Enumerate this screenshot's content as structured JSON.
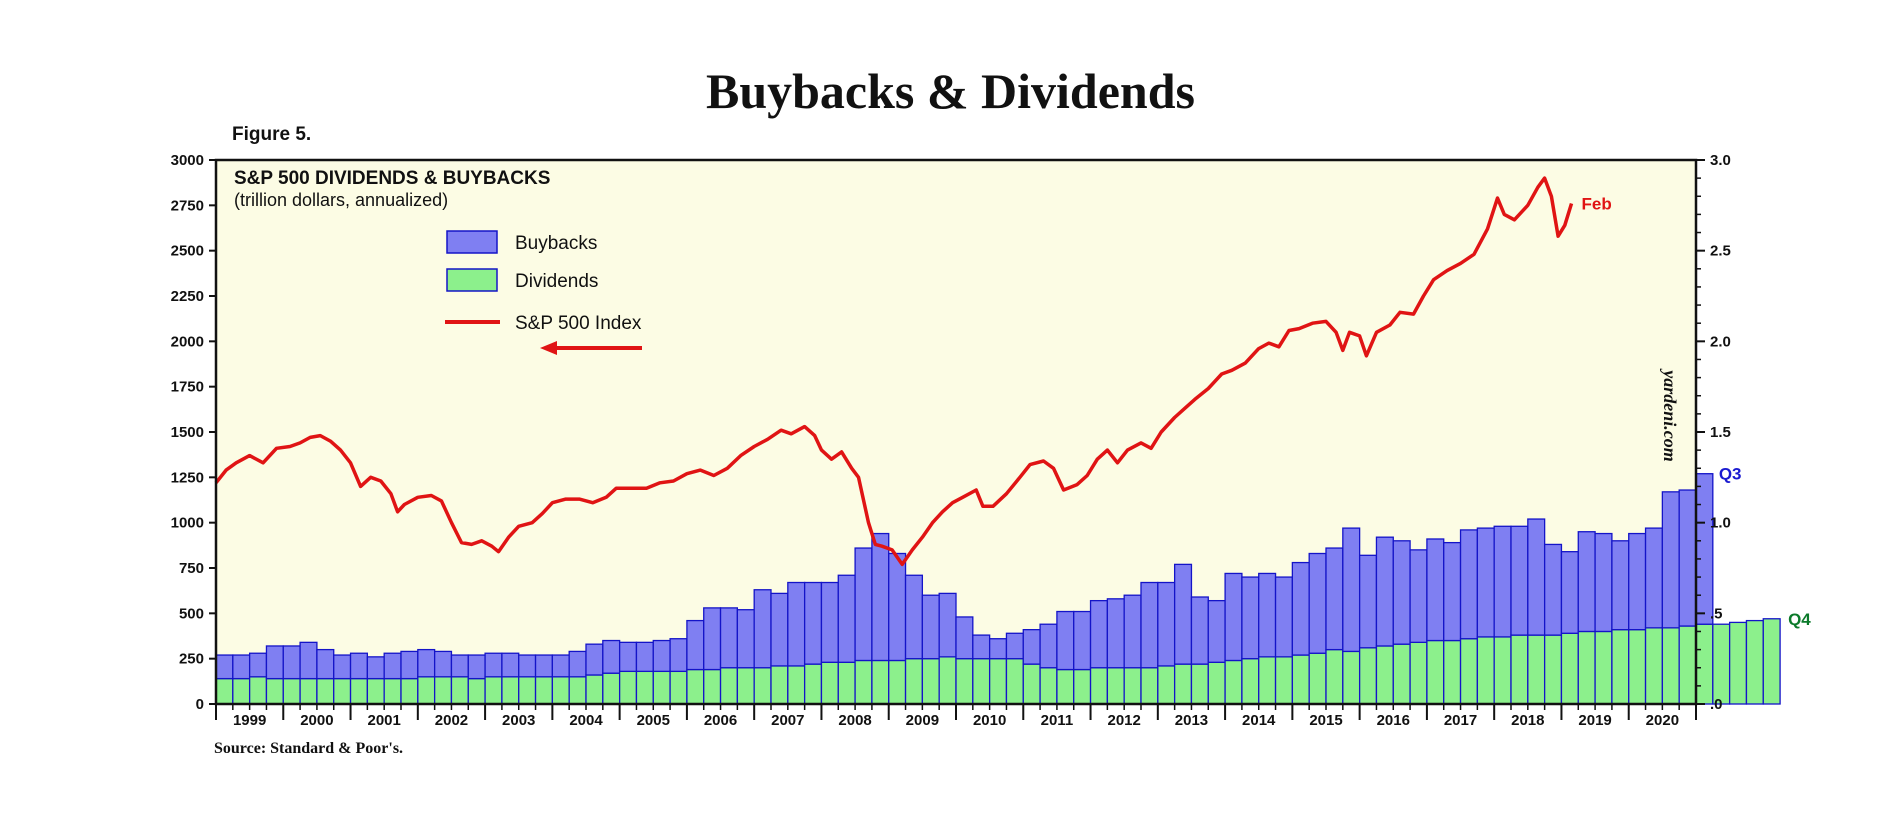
{
  "header": {
    "title": "Buybacks & Dividends",
    "figure_label": "Figure 5.",
    "source": "Source: Standard & Poor's.",
    "watermark": "yardeni.com"
  },
  "colors": {
    "background": "#fcfce4",
    "buybacks": "#7f7ff2",
    "dividends": "#8cf08c",
    "bar_edge": "#1414c8",
    "index_line": "#e01414",
    "q3_label": "#1a1ad0",
    "q4_label": "#0b7a2a",
    "feb_label": "#e01414"
  },
  "chart_data": {
    "type": "bar",
    "title": "S&P 500 DIVIDENDS & BUYBACKS",
    "subtitle": "(trillion dollars, annualized)",
    "x_labels": [
      "1999",
      "2000",
      "2001",
      "2002",
      "2003",
      "2004",
      "2005",
      "2006",
      "2007",
      "2008",
      "2009",
      "2010",
      "2011",
      "2012",
      "2013",
      "2014",
      "2015",
      "2016",
      "2017",
      "2018",
      "2019",
      "2020"
    ],
    "xlim": [
      1999,
      2021
    ],
    "y_left": {
      "range": [
        0,
        3000
      ],
      "ticks": [
        "0",
        "250",
        "500",
        "750",
        "1000",
        "1250",
        "1500",
        "1750",
        "2000",
        "2250",
        "2500",
        "2750",
        "3000"
      ]
    },
    "y_right": {
      "range": [
        0,
        3.0
      ],
      "ticks": [
        ".0",
        ".5",
        "1.0",
        "1.5",
        "2.0",
        "2.5",
        "3.0"
      ]
    },
    "legend": {
      "placement": "top-left",
      "items": [
        {
          "label": "Buybacks",
          "kind": "bar",
          "color": "#7f7ff2"
        },
        {
          "label": "Dividends",
          "kind": "bar",
          "color": "#8cf08c"
        },
        {
          "label": "S&P 500 Index",
          "kind": "line",
          "color": "#e01414"
        }
      ],
      "axis_arrow_note": "left-arrow"
    },
    "annotations": {
      "buybacks_end": "Q3",
      "dividends_end": "Q4",
      "index_end": "Feb"
    },
    "series": [
      {
        "name": "Dividends",
        "axis": "right",
        "start_quarter": "1999Q1",
        "values": [
          0.14,
          0.14,
          0.15,
          0.14,
          0.14,
          0.14,
          0.14,
          0.14,
          0.14,
          0.14,
          0.14,
          0.14,
          0.15,
          0.15,
          0.15,
          0.14,
          0.15,
          0.15,
          0.15,
          0.15,
          0.15,
          0.15,
          0.16,
          0.17,
          0.18,
          0.18,
          0.18,
          0.18,
          0.19,
          0.19,
          0.2,
          0.2,
          0.2,
          0.21,
          0.21,
          0.22,
          0.23,
          0.23,
          0.24,
          0.24,
          0.24,
          0.25,
          0.25,
          0.26,
          0.25,
          0.25,
          0.25,
          0.25,
          0.22,
          0.2,
          0.19,
          0.19,
          0.2,
          0.2,
          0.2,
          0.2,
          0.21,
          0.22,
          0.22,
          0.23,
          0.24,
          0.25,
          0.26,
          0.26,
          0.27,
          0.28,
          0.3,
          0.29,
          0.31,
          0.32,
          0.33,
          0.34,
          0.35,
          0.35,
          0.36,
          0.37,
          0.37,
          0.38,
          0.38,
          0.38,
          0.39,
          0.4,
          0.4,
          0.41,
          0.41,
          0.42,
          0.42,
          0.43,
          0.44,
          0.44,
          0.45,
          0.46,
          0.47
        ]
      },
      {
        "name": "Buybacks",
        "axis": "right",
        "start_quarter": "1999Q1",
        "values": [
          0.13,
          0.13,
          0.13,
          0.18,
          0.18,
          0.2,
          0.16,
          0.13,
          0.14,
          0.12,
          0.14,
          0.15,
          0.15,
          0.14,
          0.12,
          0.13,
          0.13,
          0.13,
          0.12,
          0.12,
          0.12,
          0.14,
          0.17,
          0.18,
          0.16,
          0.16,
          0.17,
          0.18,
          0.27,
          0.34,
          0.33,
          0.32,
          0.43,
          0.4,
          0.46,
          0.45,
          0.44,
          0.48,
          0.62,
          0.7,
          0.59,
          0.46,
          0.35,
          0.35,
          0.23,
          0.13,
          0.11,
          0.14,
          0.19,
          0.24,
          0.32,
          0.32,
          0.37,
          0.38,
          0.4,
          0.47,
          0.46,
          0.55,
          0.37,
          0.34,
          0.48,
          0.45,
          0.46,
          0.44,
          0.51,
          0.55,
          0.56,
          0.68,
          0.51,
          0.6,
          0.57,
          0.51,
          0.56,
          0.54,
          0.6,
          0.6,
          0.61,
          0.6,
          0.64,
          0.5,
          0.45,
          0.55,
          0.54,
          0.49,
          0.53,
          0.55,
          0.75,
          0.75,
          0.83
        ]
      },
      {
        "name": "S&P 500 Index",
        "axis": "left",
        "type": "line",
        "points": [
          [
            1999.0,
            1220
          ],
          [
            1999.15,
            1290
          ],
          [
            1999.3,
            1330
          ],
          [
            1999.5,
            1370
          ],
          [
            1999.7,
            1330
          ],
          [
            1999.9,
            1410
          ],
          [
            2000.1,
            1420
          ],
          [
            2000.25,
            1440
          ],
          [
            2000.4,
            1470
          ],
          [
            2000.55,
            1480
          ],
          [
            2000.7,
            1450
          ],
          [
            2000.85,
            1400
          ],
          [
            2001.0,
            1330
          ],
          [
            2001.15,
            1200
          ],
          [
            2001.3,
            1250
          ],
          [
            2001.45,
            1230
          ],
          [
            2001.6,
            1160
          ],
          [
            2001.7,
            1060
          ],
          [
            2001.8,
            1100
          ],
          [
            2002.0,
            1140
          ],
          [
            2002.2,
            1150
          ],
          [
            2002.35,
            1120
          ],
          [
            2002.5,
            1000
          ],
          [
            2002.65,
            890
          ],
          [
            2002.8,
            880
          ],
          [
            2002.95,
            900
          ],
          [
            2003.1,
            870
          ],
          [
            2003.2,
            840
          ],
          [
            2003.35,
            920
          ],
          [
            2003.5,
            980
          ],
          [
            2003.7,
            1000
          ],
          [
            2003.85,
            1050
          ],
          [
            2004.0,
            1110
          ],
          [
            2004.2,
            1130
          ],
          [
            2004.4,
            1130
          ],
          [
            2004.6,
            1110
          ],
          [
            2004.8,
            1140
          ],
          [
            2004.95,
            1190
          ],
          [
            2005.2,
            1190
          ],
          [
            2005.4,
            1190
          ],
          [
            2005.6,
            1220
          ],
          [
            2005.8,
            1230
          ],
          [
            2006.0,
            1270
          ],
          [
            2006.2,
            1290
          ],
          [
            2006.4,
            1260
          ],
          [
            2006.6,
            1300
          ],
          [
            2006.8,
            1370
          ],
          [
            2007.0,
            1420
          ],
          [
            2007.2,
            1460
          ],
          [
            2007.4,
            1510
          ],
          [
            2007.55,
            1490
          ],
          [
            2007.75,
            1530
          ],
          [
            2007.9,
            1480
          ],
          [
            2008.0,
            1400
          ],
          [
            2008.15,
            1350
          ],
          [
            2008.3,
            1390
          ],
          [
            2008.45,
            1300
          ],
          [
            2008.55,
            1250
          ],
          [
            2008.7,
            1000
          ],
          [
            2008.8,
            880
          ],
          [
            2008.9,
            870
          ],
          [
            2009.05,
            850
          ],
          [
            2009.2,
            770
          ],
          [
            2009.35,
            850
          ],
          [
            2009.5,
            920
          ],
          [
            2009.65,
            1000
          ],
          [
            2009.8,
            1060
          ],
          [
            2009.95,
            1110
          ],
          [
            2010.1,
            1140
          ],
          [
            2010.3,
            1180
          ],
          [
            2010.4,
            1090
          ],
          [
            2010.55,
            1090
          ],
          [
            2010.75,
            1160
          ],
          [
            2010.95,
            1250
          ],
          [
            2011.1,
            1320
          ],
          [
            2011.3,
            1340
          ],
          [
            2011.45,
            1300
          ],
          [
            2011.6,
            1180
          ],
          [
            2011.8,
            1210
          ],
          [
            2011.95,
            1260
          ],
          [
            2012.1,
            1350
          ],
          [
            2012.25,
            1400
          ],
          [
            2012.4,
            1330
          ],
          [
            2012.55,
            1400
          ],
          [
            2012.75,
            1440
          ],
          [
            2012.9,
            1410
          ],
          [
            2013.05,
            1500
          ],
          [
            2013.25,
            1580
          ],
          [
            2013.4,
            1630
          ],
          [
            2013.55,
            1680
          ],
          [
            2013.75,
            1740
          ],
          [
            2013.95,
            1820
          ],
          [
            2014.1,
            1840
          ],
          [
            2014.3,
            1880
          ],
          [
            2014.5,
            1960
          ],
          [
            2014.65,
            1990
          ],
          [
            2014.8,
            1970
          ],
          [
            2014.95,
            2060
          ],
          [
            2015.1,
            2070
          ],
          [
            2015.3,
            2100
          ],
          [
            2015.5,
            2110
          ],
          [
            2015.65,
            2050
          ],
          [
            2015.75,
            1950
          ],
          [
            2015.85,
            2050
          ],
          [
            2016.0,
            2030
          ],
          [
            2016.1,
            1920
          ],
          [
            2016.25,
            2050
          ],
          [
            2016.45,
            2090
          ],
          [
            2016.6,
            2160
          ],
          [
            2016.8,
            2150
          ],
          [
            2016.95,
            2250
          ],
          [
            2017.1,
            2340
          ],
          [
            2017.3,
            2390
          ],
          [
            2017.5,
            2430
          ],
          [
            2017.7,
            2480
          ],
          [
            2017.9,
            2620
          ],
          [
            2018.05,
            2790
          ],
          [
            2018.15,
            2700
          ],
          [
            2018.3,
            2670
          ],
          [
            2018.5,
            2750
          ],
          [
            2018.65,
            2850
          ],
          [
            2018.75,
            2900
          ],
          [
            2018.85,
            2800
          ],
          [
            2018.95,
            2580
          ],
          [
            2019.05,
            2640
          ],
          [
            2019.15,
            2760
          ]
        ]
      }
    ]
  }
}
